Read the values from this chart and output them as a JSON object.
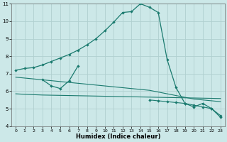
{
  "xlabel": "Humidex (Indice chaleur)",
  "background_color": "#cce8e8",
  "grid_color": "#aacccc",
  "line_color": "#1a7a6e",
  "xlim": [
    -0.5,
    23.5
  ],
  "ylim": [
    4,
    11
  ],
  "xtick_labels": [
    "0",
    "1",
    "2",
    "3",
    "4",
    "5",
    "6",
    "7",
    "8",
    "9",
    "10",
    "11",
    "12",
    "13",
    "14",
    "15",
    "16",
    "17",
    "18",
    "19",
    "20",
    "21",
    "22",
    "23"
  ],
  "ytick_labels": [
    "4",
    "5",
    "6",
    "7",
    "8",
    "9",
    "10",
    "11"
  ],
  "curve_main_x": [
    0,
    1,
    2,
    3,
    4,
    5,
    6,
    7,
    8,
    9,
    10,
    11,
    12,
    13,
    14,
    15,
    16,
    17,
    18,
    19,
    20,
    21,
    22,
    23
  ],
  "curve_main_y": [
    7.2,
    7.3,
    7.35,
    7.5,
    7.7,
    7.9,
    8.1,
    8.35,
    8.65,
    9.0,
    9.45,
    9.95,
    10.5,
    10.55,
    11.0,
    10.8,
    10.5,
    7.8,
    6.2,
    5.3,
    5.1,
    5.3,
    5.0,
    4.5
  ],
  "curve_upper_small_x": [
    3,
    4,
    5,
    6,
    7
  ],
  "curve_upper_small_y": [
    6.65,
    6.3,
    6.15,
    6.6,
    7.45
  ],
  "flat_line1_x": [
    0,
    1,
    2,
    3,
    4,
    5,
    6,
    7,
    8,
    9,
    10,
    11,
    12,
    13,
    14,
    15,
    16,
    17,
    18,
    19,
    20,
    21,
    22,
    23
  ],
  "flat_line1_y": [
    5.85,
    5.82,
    5.8,
    5.78,
    5.77,
    5.76,
    5.75,
    5.74,
    5.73,
    5.72,
    5.71,
    5.7,
    5.69,
    5.68,
    5.67,
    5.66,
    5.65,
    5.64,
    5.63,
    5.62,
    5.61,
    5.6,
    5.59,
    5.58
  ],
  "flat_line2_x": [
    0,
    1,
    2,
    3,
    4,
    5,
    6,
    7,
    8,
    9,
    10,
    11,
    12,
    13,
    14,
    15,
    16,
    17,
    18,
    19,
    20,
    21,
    22,
    23
  ],
  "flat_line2_y": [
    6.8,
    6.75,
    6.7,
    6.65,
    6.6,
    6.55,
    6.5,
    6.45,
    6.4,
    6.35,
    6.3,
    6.25,
    6.2,
    6.15,
    6.1,
    6.05,
    5.95,
    5.85,
    5.75,
    5.65,
    5.55,
    5.5,
    5.45,
    5.4
  ],
  "right_tail_x": [
    15,
    16,
    17,
    18,
    19,
    20,
    21,
    22,
    23
  ],
  "right_tail_y": [
    5.5,
    5.45,
    5.4,
    5.35,
    5.3,
    5.2,
    5.1,
    5.0,
    4.6
  ]
}
